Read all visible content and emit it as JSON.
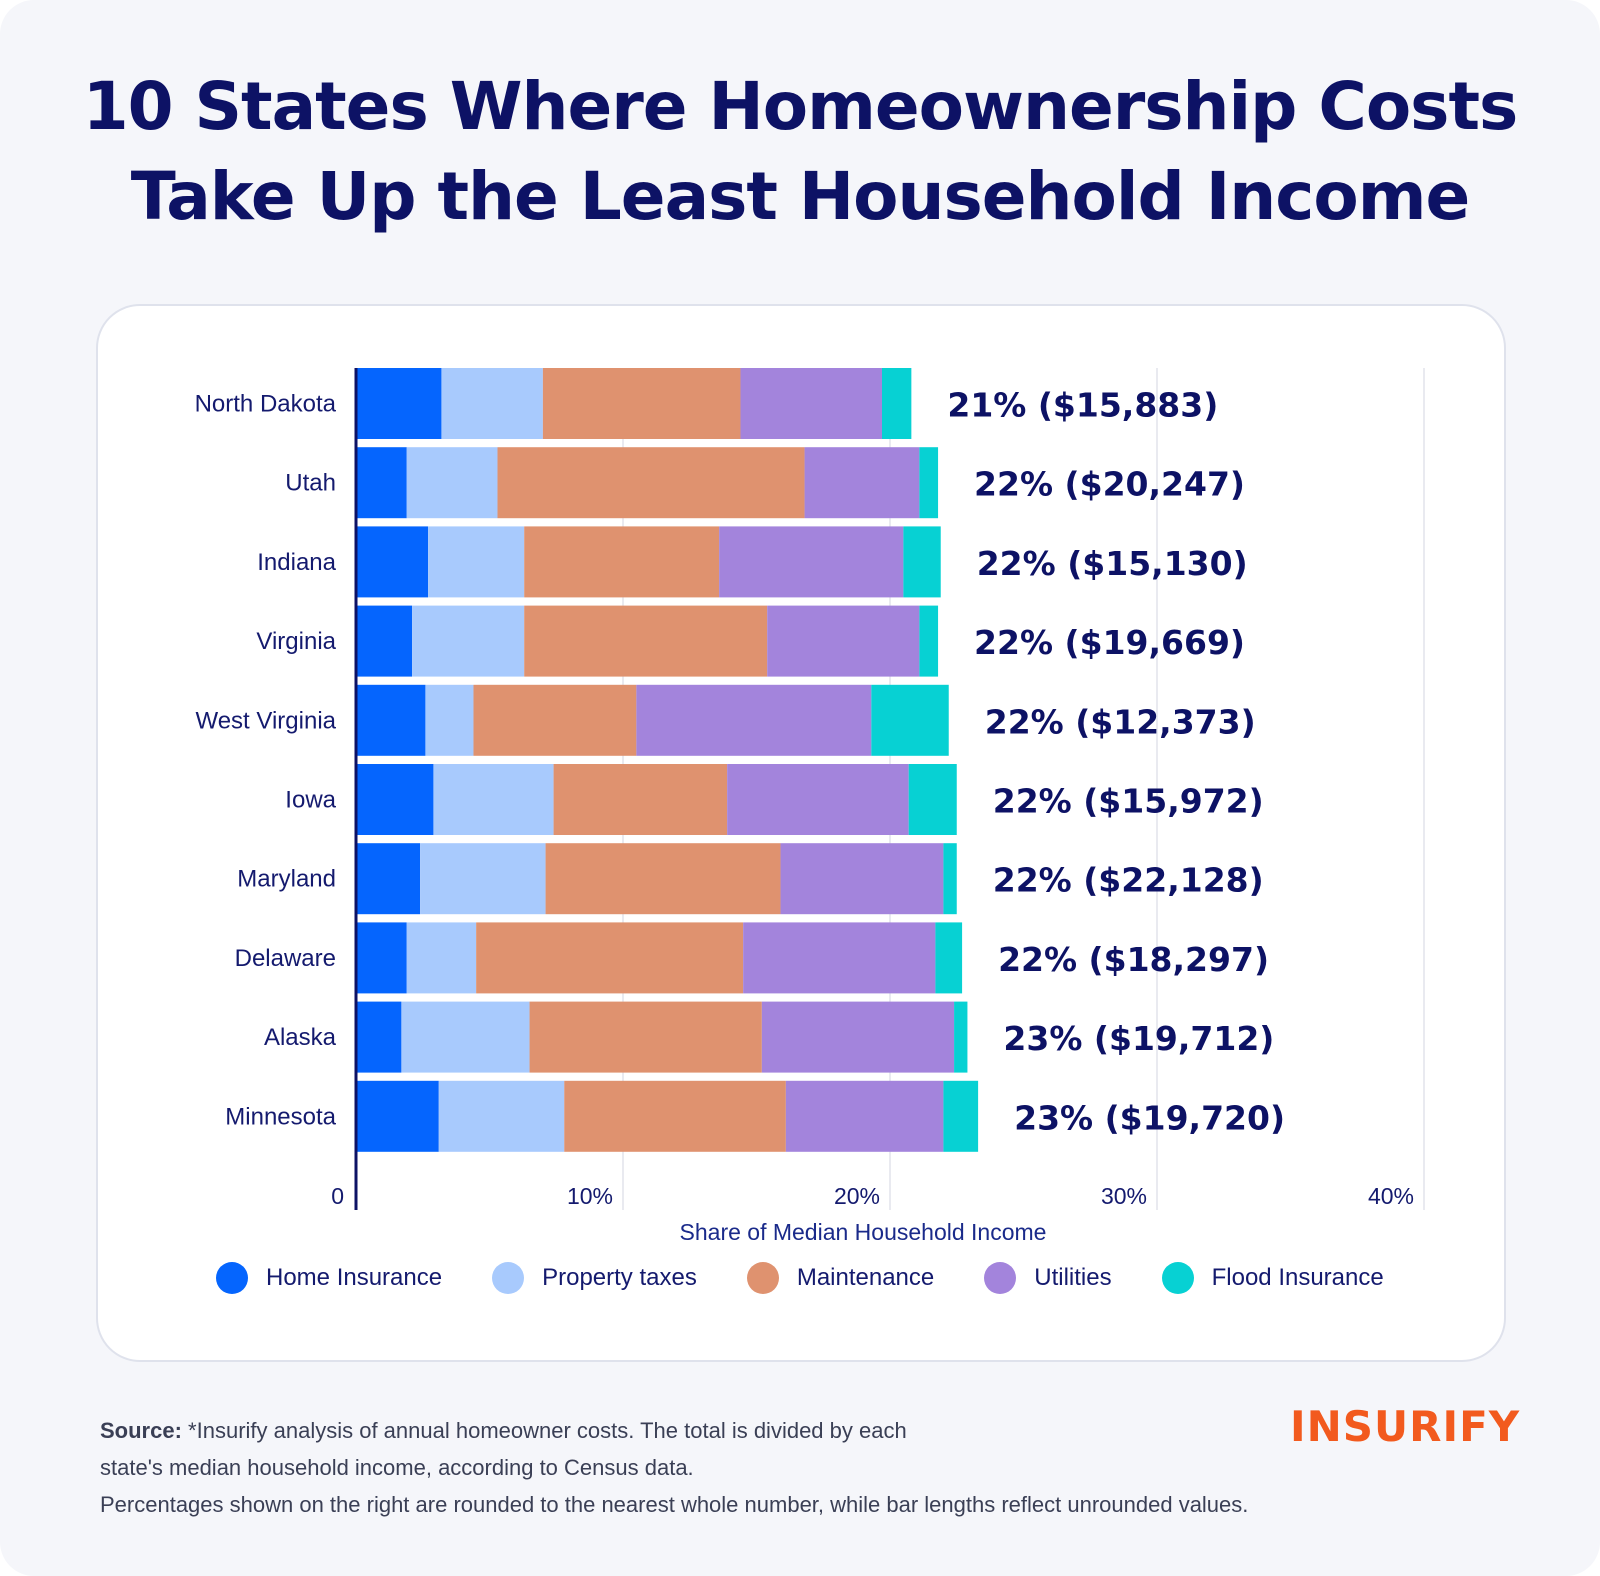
{
  "title": {
    "line1": "10 States Where Homeownership Costs",
    "line2": "Take Up the Least Household Income"
  },
  "chart_data": {
    "type": "bar",
    "orientation": "horizontal",
    "stacked": true,
    "xlabel": "Share of Median Household Income",
    "xlim": [
      0,
      40
    ],
    "x_ticks": [
      "0",
      "10%",
      "20%",
      "30%",
      "40%"
    ],
    "grid": true,
    "categories": [
      "North Dakota",
      "Utah",
      "Indiana",
      "Virginia",
      "West Virginia",
      "Iowa",
      "Maryland",
      "Delaware",
      "Alaska",
      "Minnesota"
    ],
    "series": [
      {
        "name": "Home Insurance",
        "color": "#0565fe",
        "values": [
          3.2,
          1.9,
          2.7,
          2.1,
          2.6,
          2.9,
          2.4,
          1.9,
          1.7,
          3.1
        ]
      },
      {
        "name": "Property taxes",
        "color": "#a8cafd",
        "values": [
          3.8,
          3.4,
          3.6,
          4.2,
          1.8,
          4.5,
          4.7,
          2.6,
          4.8,
          4.7
        ]
      },
      {
        "name": "Maintenance",
        "color": "#df926f",
        "values": [
          7.4,
          11.5,
          7.3,
          9.1,
          6.1,
          6.5,
          8.8,
          10.0,
          8.7,
          8.3
        ]
      },
      {
        "name": "Utilities",
        "color": "#a384dc",
        "values": [
          5.3,
          4.3,
          6.9,
          5.7,
          8.8,
          6.8,
          6.1,
          7.2,
          7.2,
          5.9
        ]
      },
      {
        "name": "Flood Insurance",
        "color": "#07d1d3",
        "values": [
          1.1,
          0.7,
          1.4,
          0.7,
          2.9,
          1.8,
          0.5,
          1.0,
          0.5,
          1.3
        ]
      }
    ],
    "total_labels": [
      "21% ($15,883)",
      "22% ($20,247)",
      "22% ($15,130)",
      "22% ($19,669)",
      "22% ($12,373)",
      "22% ($15,972)",
      "22% ($22,128)",
      "22% ($18,297)",
      "23% ($19,712)",
      "23% ($19,720)"
    ]
  },
  "footer": {
    "source_label": "Source:",
    "line1": "*Insurify analysis of annual homeowner costs. The total is divided by each",
    "line2": "state's median household income, according to Census data.",
    "line3": "Percentages shown on the right are rounded to the nearest whole number, while bar lengths reflect unrounded values."
  },
  "brand": "INSURIFY"
}
